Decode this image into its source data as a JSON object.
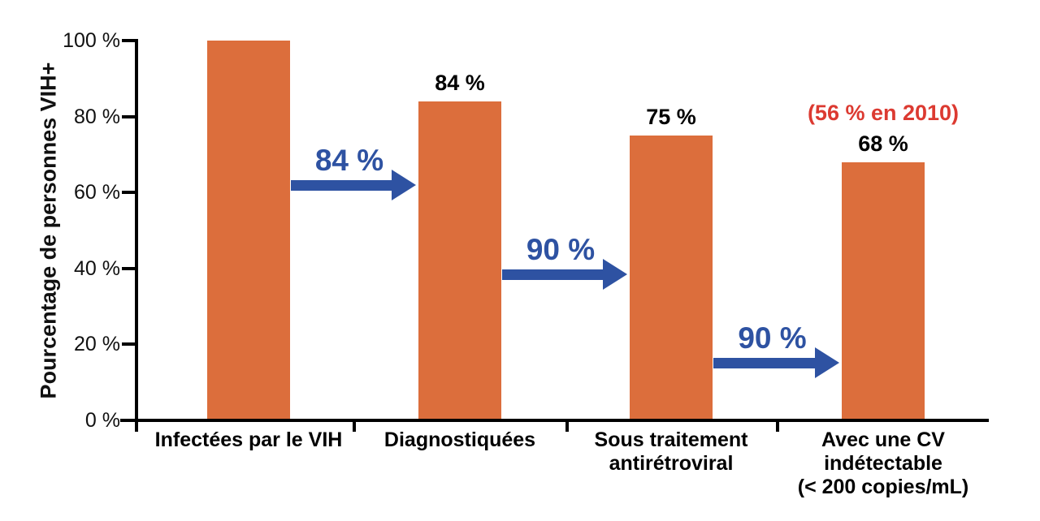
{
  "chart_data": {
    "type": "bar",
    "title": "",
    "ylabel": "Pourcentage de personnes VIH+",
    "ylim": [
      0,
      100
    ],
    "grid": false,
    "legend": "none",
    "yticks": [
      "0 %",
      "20 %",
      "40 %",
      "60 %",
      "80 %",
      "100 %"
    ],
    "categories": [
      "Infectées par le VIH",
      "Diagnostiquées",
      "Sous traitement antirétroviral",
      "Avec une CV indétectable (< 200 copies/mL)"
    ],
    "category_label_lines": [
      [
        "Infectées par le VIH"
      ],
      [
        "Diagnostiquées"
      ],
      [
        "Sous traitement",
        "antirétroviral"
      ],
      [
        "Avec une CV",
        "indétectable",
        "(< 200 copies/mL)"
      ]
    ],
    "values": [
      100,
      84,
      75,
      68
    ],
    "bar_value_labels": [
      "",
      "84 %",
      "75 %",
      "68 %"
    ],
    "transition_arrows": [
      {
        "from": 0,
        "to": 1,
        "label": "84 %"
      },
      {
        "from": 1,
        "to": 2,
        "label": "90 %"
      },
      {
        "from": 2,
        "to": 3,
        "label": "90 %"
      }
    ],
    "annotation": {
      "text": "(56 % en 2010)",
      "bar_index": 3
    },
    "colors": {
      "bar": "#DC6E3C",
      "arrow": "#2E52A2",
      "annotation": "#DC3A31",
      "axis": "#000000",
      "text": "#111111"
    }
  }
}
